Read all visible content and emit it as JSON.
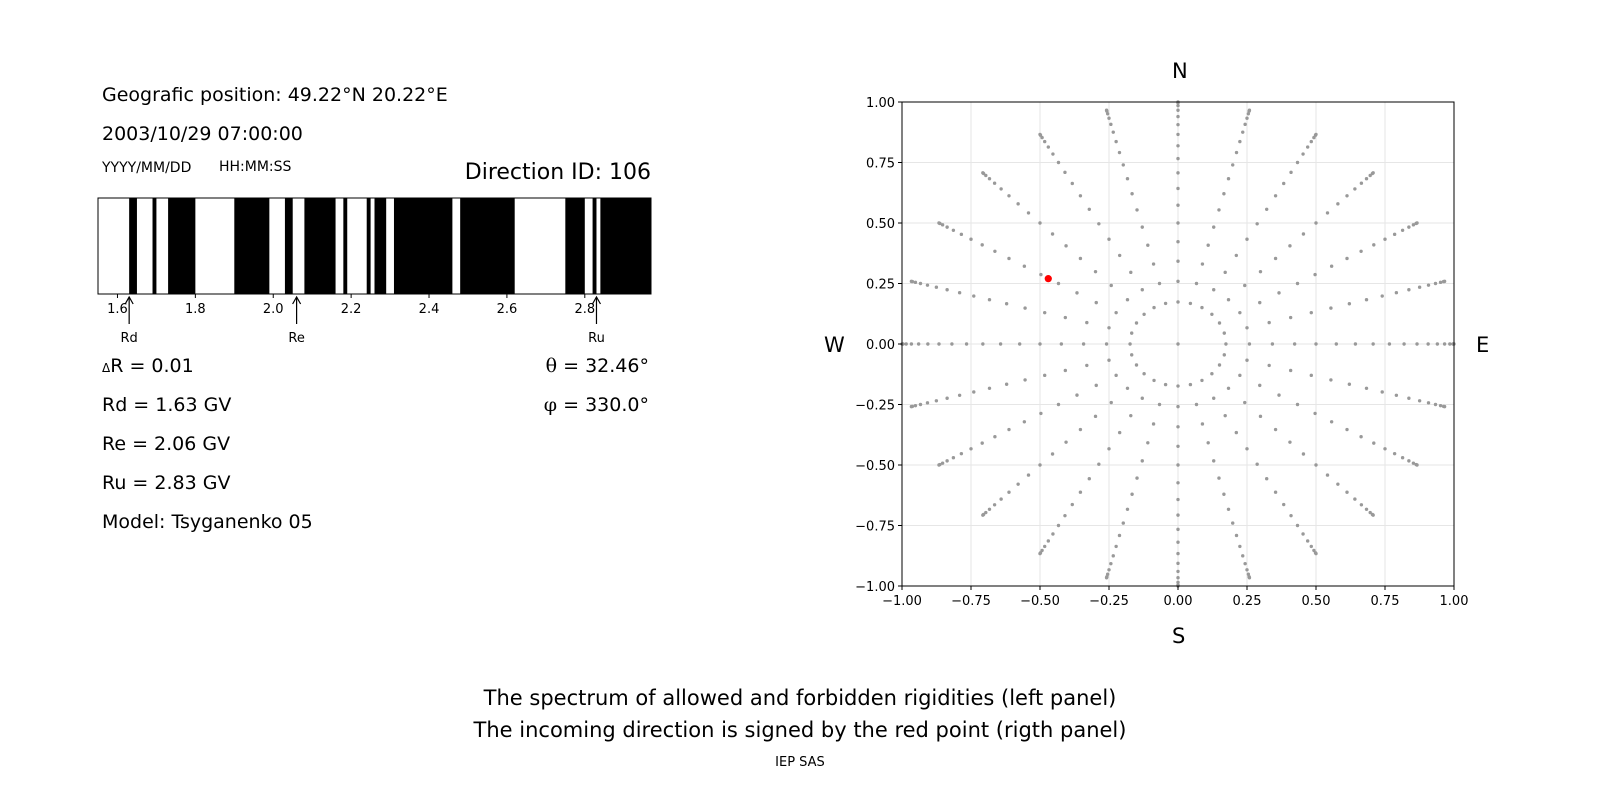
{
  "left_panel": {
    "position_text": "Geografic position: 49.22°N 20.22°E",
    "datetime_text": "2003/10/29 07:00:00",
    "date_format_label": "YYYY/MM/DD",
    "time_format_label": "HH:MM:SS",
    "direction_text": "Direction ID: 106",
    "delta_r_text": "R = 0.01",
    "rd_text": "Rd = 1.63 GV",
    "re_text": "Re = 2.06 GV",
    "ru_text": "Ru = 2.83 GV",
    "model_text": "Model: Tsyganenko 05",
    "theta_text": " = 32.46°",
    "phi_text": " = 330.0°"
  },
  "compass": {
    "north": "N",
    "south": "S",
    "west": "W",
    "east": "E"
  },
  "captions": {
    "line1": "The spectrum of allowed and forbidden rigidities (left panel)",
    "line2": "The incoming direction is signed by the red point (rigth panel)",
    "footer": "IEP SAS"
  },
  "colors": {
    "forbidden": "#000000",
    "allowed": "#ffffff",
    "grid_points": "#999999",
    "direction_point": "#ff0000"
  },
  "chart_data": [
    {
      "type": "bar",
      "name": "rigidity spectrum",
      "xlim": [
        1.55,
        2.97
      ],
      "xticks": [
        1.6,
        1.8,
        2.0,
        2.2,
        2.4,
        2.6,
        2.8
      ],
      "xtick_labels": [
        "1.6",
        "1.8",
        "2.0",
        "2.2",
        "2.4",
        "2.6",
        "2.8"
      ],
      "forbidden_bands": [
        [
          1.63,
          1.65
        ],
        [
          1.69,
          1.7
        ],
        [
          1.73,
          1.8
        ],
        [
          1.9,
          1.99
        ],
        [
          2.03,
          2.05
        ],
        [
          2.08,
          2.16
        ],
        [
          2.18,
          2.19
        ],
        [
          2.24,
          2.25
        ],
        [
          2.26,
          2.29
        ],
        [
          2.31,
          2.46
        ],
        [
          2.48,
          2.62
        ],
        [
          2.75,
          2.8
        ],
        [
          2.82,
          2.83
        ],
        [
          2.84,
          2.97
        ]
      ],
      "markers": [
        {
          "label": "Rd",
          "value": 1.63
        },
        {
          "label": "Re",
          "value": 2.06
        },
        {
          "label": "Ru",
          "value": 2.83
        }
      ]
    },
    {
      "type": "scatter",
      "name": "direction map",
      "xlim": [
        -1.0,
        1.0
      ],
      "ylim": [
        -1.0,
        1.0
      ],
      "xticks": [
        -1.0,
        -0.75,
        -0.5,
        -0.25,
        0.0,
        0.25,
        0.5,
        0.75,
        1.0
      ],
      "xtick_labels": [
        "−1.00",
        "−0.75",
        "−0.50",
        "−0.25",
        "0.00",
        "0.25",
        "0.50",
        "0.75",
        "1.00"
      ],
      "yticks": [
        1.0,
        0.75,
        0.5,
        0.25,
        0.0,
        -0.25,
        -0.5,
        -0.75,
        -1.0
      ],
      "ytick_labels": [
        "1.00",
        "0.75",
        "0.50",
        "0.25",
        "0.00",
        "−0.25",
        "−0.50",
        "−0.75",
        "−1.00"
      ],
      "grid": true,
      "grid_points": "sin(theta) for zenith angle theta = 0°–90° in steps of 5°, azimuth every 15° (the theta = 5° ring is not drawn)",
      "highlight_point": {
        "x": -0.47,
        "y": 0.27
      }
    }
  ]
}
